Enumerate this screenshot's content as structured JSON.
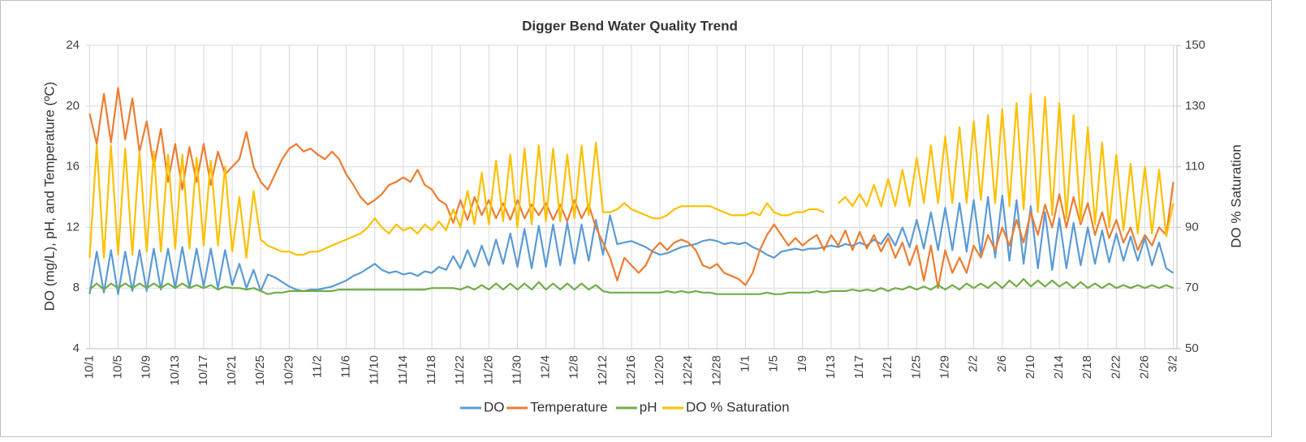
{
  "chart_data": {
    "type": "line",
    "title": "Digger Bend Water Quality Trend",
    "y_label": "DO (mg/L), pH, and Temperature (ºC)",
    "y2_label": "DO % Saturation",
    "categories": [
      "10/1",
      null,
      null,
      null,
      "10/5",
      null,
      null,
      null,
      "10/9",
      null,
      null,
      null,
      "10/13",
      null,
      null,
      null,
      "10/17",
      null,
      null,
      null,
      "10/21",
      null,
      null,
      null,
      "10/25",
      null,
      null,
      null,
      "10/29",
      null,
      null,
      null,
      "11/2",
      null,
      null,
      null,
      "11/6",
      null,
      null,
      null,
      "11/10",
      null,
      null,
      null,
      "11/14",
      null,
      null,
      null,
      "11/18",
      null,
      null,
      null,
      "11/22",
      null,
      null,
      null,
      "11/26",
      null,
      null,
      null,
      "11/30",
      null,
      null,
      null,
      "12/4",
      null,
      null,
      null,
      "12/8",
      null,
      null,
      null,
      "12/12",
      null,
      null,
      null,
      "12/16",
      null,
      null,
      null,
      "12/20",
      null,
      null,
      null,
      "12/24",
      null,
      null,
      null,
      "12/28",
      null,
      null,
      null,
      "1/1",
      null,
      null,
      null,
      "1/5",
      null,
      null,
      null,
      "1/9",
      null,
      null,
      null,
      "1/13",
      null,
      null,
      null,
      "1/17",
      null,
      null,
      null,
      "1/21",
      null,
      null,
      null,
      "1/25",
      null,
      null,
      null,
      "1/29",
      null,
      null,
      null,
      "2/2",
      null,
      null,
      null,
      "2/6",
      null,
      null,
      null,
      "2/10",
      null,
      null,
      null,
      "2/14",
      null,
      null,
      null,
      "2/18",
      null,
      null,
      null,
      "2/22",
      null,
      null,
      null,
      "2/26",
      null,
      null,
      null,
      "3/2"
    ],
    "ylim": [
      4,
      24
    ],
    "yticks": [
      4,
      8,
      12,
      16,
      20,
      24
    ],
    "y2lim": [
      50,
      150
    ],
    "y2ticks": [
      50,
      70,
      90,
      110,
      130,
      150
    ],
    "grid": true,
    "legend": "bottom",
    "series": [
      {
        "name": "DO",
        "color": "#5b9bd5",
        "values": [
          7.6,
          10.4,
          7.7,
          10.5,
          7.6,
          10.4,
          7.8,
          10.5,
          7.8,
          10.6,
          7.9,
          10.6,
          8.0,
          10.7,
          8.0,
          10.6,
          8.1,
          10.6,
          8.0,
          10.5,
          8.2,
          9.6,
          8.0,
          9.2,
          7.8,
          8.9,
          8.7,
          8.4,
          8.1,
          7.9,
          7.8,
          7.9,
          7.9,
          8.0,
          8.1,
          8.3,
          8.5,
          8.8,
          9.0,
          9.3,
          9.6,
          9.2,
          9.0,
          9.1,
          8.9,
          9.0,
          8.8,
          9.1,
          9.0,
          9.4,
          9.2,
          10.1,
          9.3,
          10.5,
          9.4,
          10.8,
          9.5,
          11.2,
          9.6,
          11.6,
          9.4,
          11.9,
          9.3,
          12.1,
          9.4,
          12.2,
          9.5,
          12.3,
          9.6,
          12.2,
          9.8,
          12.5,
          10.2,
          12.8,
          10.9,
          11.0,
          11.1,
          10.9,
          10.7,
          10.4,
          10.2,
          10.3,
          10.5,
          10.7,
          10.8,
          10.9,
          11.1,
          11.2,
          11.1,
          10.9,
          11.0,
          10.9,
          11.0,
          10.7,
          10.5,
          10.2,
          10.0,
          10.4,
          10.5,
          10.6,
          10.5,
          10.6,
          10.6,
          10.7,
          10.8,
          10.7,
          10.9,
          10.8,
          11.0,
          10.8,
          11.2,
          10.9,
          11.6,
          10.8,
          12.0,
          10.7,
          12.5,
          10.6,
          13.0,
          10.5,
          13.3,
          10.5,
          13.6,
          10.4,
          13.8,
          10.2,
          14.0,
          10.0,
          14.1,
          9.8,
          13.8,
          9.6,
          13.4,
          9.3,
          13.0,
          9.2,
          12.6,
          9.3,
          12.3,
          9.5,
          12.0,
          9.6,
          11.8,
          9.7,
          11.6,
          9.8,
          11.4,
          9.8,
          11.3,
          9.5,
          11.0,
          9.3,
          9.0
        ]
      },
      {
        "name": "Temperature",
        "color": "#ed7d31",
        "values": [
          19.5,
          17.5,
          20.8,
          17.6,
          21.2,
          17.8,
          20.5,
          17.0,
          19.0,
          16.0,
          18.5,
          15.0,
          17.5,
          14.5,
          17.3,
          15.0,
          17.5,
          14.8,
          17.0,
          15.5,
          16.0,
          16.5,
          18.3,
          16.0,
          15.0,
          14.5,
          15.5,
          16.5,
          17.2,
          17.5,
          17.0,
          17.2,
          16.8,
          16.5,
          17.0,
          16.5,
          15.5,
          14.8,
          14.0,
          13.5,
          13.8,
          14.2,
          14.8,
          15.0,
          15.3,
          15.0,
          15.8,
          14.8,
          14.5,
          13.8,
          13.5,
          12.3,
          13.8,
          12.5,
          14.0,
          12.8,
          13.8,
          12.6,
          13.6,
          12.5,
          13.8,
          12.6,
          13.5,
          12.8,
          13.6,
          12.5,
          13.5,
          12.4,
          13.8,
          12.6,
          13.5,
          12.0,
          11.0,
          10.0,
          8.5,
          10.0,
          9.5,
          9.0,
          9.5,
          10.5,
          11.0,
          10.5,
          11.0,
          11.2,
          11.0,
          10.5,
          9.5,
          9.3,
          9.6,
          9.0,
          8.8,
          8.6,
          8.2,
          9.0,
          10.5,
          11.5,
          12.2,
          11.5,
          10.8,
          11.3,
          10.8,
          11.2,
          11.5,
          10.5,
          11.5,
          10.8,
          11.8,
          10.5,
          11.7,
          10.6,
          11.5,
          10.4,
          11.3,
          10.0,
          11.0,
          9.5,
          10.8,
          8.5,
          10.8,
          8.0,
          10.5,
          9.0,
          10.0,
          9.0,
          10.8,
          10.0,
          11.5,
          10.5,
          12.0,
          10.8,
          12.5,
          11.0,
          13.0,
          11.5,
          13.5,
          12.0,
          14.2,
          12.0,
          14.0,
          12.2,
          13.6,
          11.5,
          13.0,
          11.3,
          12.5,
          11.0,
          12.0,
          10.5,
          11.5,
          10.8,
          12.0,
          11.5,
          15.0
        ]
      },
      {
        "name": "pH",
        "color": "#70ad47",
        "values": [
          7.9,
          8.3,
          7.9,
          8.3,
          8.0,
          8.3,
          8.0,
          8.3,
          8.0,
          8.3,
          8.0,
          8.3,
          8.0,
          8.3,
          8.0,
          8.2,
          8.0,
          8.2,
          7.9,
          8.1,
          8.0,
          8.0,
          7.9,
          8.0,
          7.8,
          7.6,
          7.7,
          7.7,
          7.8,
          7.8,
          7.8,
          7.8,
          7.8,
          7.8,
          7.8,
          7.9,
          7.9,
          7.9,
          7.9,
          7.9,
          7.9,
          7.9,
          7.9,
          7.9,
          7.9,
          7.9,
          7.9,
          7.9,
          8.0,
          8.0,
          8.0,
          8.0,
          7.9,
          8.1,
          7.9,
          8.2,
          7.9,
          8.3,
          7.9,
          8.3,
          7.9,
          8.3,
          7.9,
          8.4,
          7.9,
          8.3,
          7.9,
          8.3,
          7.9,
          8.3,
          7.9,
          8.2,
          7.8,
          7.7,
          7.7,
          7.7,
          7.7,
          7.7,
          7.7,
          7.7,
          7.7,
          7.8,
          7.7,
          7.8,
          7.7,
          7.8,
          7.7,
          7.7,
          7.6,
          7.6,
          7.6,
          7.6,
          7.6,
          7.6,
          7.6,
          7.7,
          7.6,
          7.6,
          7.7,
          7.7,
          7.7,
          7.7,
          7.8,
          7.7,
          7.8,
          7.8,
          7.8,
          7.9,
          7.8,
          7.9,
          7.8,
          8.0,
          7.8,
          8.0,
          7.9,
          8.1,
          7.9,
          8.1,
          7.9,
          8.2,
          7.9,
          8.2,
          7.9,
          8.3,
          8.0,
          8.3,
          8.0,
          8.4,
          8.0,
          8.5,
          8.1,
          8.6,
          8.1,
          8.5,
          8.1,
          8.5,
          8.1,
          8.4,
          8.0,
          8.4,
          8.0,
          8.3,
          8.0,
          8.3,
          8.0,
          8.2,
          8.0,
          8.2,
          8.0,
          8.2,
          8.0,
          8.2,
          8.0
        ]
      },
      {
        "name": "DO % Saturation",
        "color": "#ffc000",
        "axis": "y2",
        "values": [
          80,
          117,
          80,
          117,
          81,
          116,
          81,
          115,
          82,
          115,
          82,
          114,
          83,
          114,
          83,
          113,
          84,
          112,
          84,
          110,
          82,
          100,
          80,
          102,
          86,
          84,
          83,
          82,
          82,
          81,
          81,
          82,
          82,
          83,
          84,
          85,
          86,
          87,
          88,
          90,
          93,
          90,
          88,
          91,
          89,
          90,
          88,
          91,
          89,
          92,
          89,
          96,
          90,
          102,
          91,
          108,
          91,
          112,
          92,
          114,
          90,
          116,
          91,
          117,
          92,
          116,
          92,
          114,
          93,
          117,
          94,
          118,
          95,
          95,
          96,
          98,
          96,
          95,
          94,
          93,
          93,
          94,
          96,
          97,
          97,
          97,
          97,
          97,
          96,
          95,
          94,
          94,
          94,
          95,
          94,
          98,
          95,
          94,
          94,
          95,
          95,
          96,
          96,
          95,
          null,
          98,
          100,
          97,
          101,
          97,
          104,
          97,
          106,
          97,
          109,
          97,
          113,
          98,
          117,
          98,
          120,
          98,
          123,
          98,
          125,
          99,
          127,
          98,
          129,
          97,
          131,
          96,
          134,
          95,
          133,
          94,
          131,
          93,
          127,
          92,
          123,
          91,
          118,
          90,
          114,
          89,
          111,
          88,
          110,
          88,
          109,
          87,
          98
        ]
      }
    ]
  }
}
